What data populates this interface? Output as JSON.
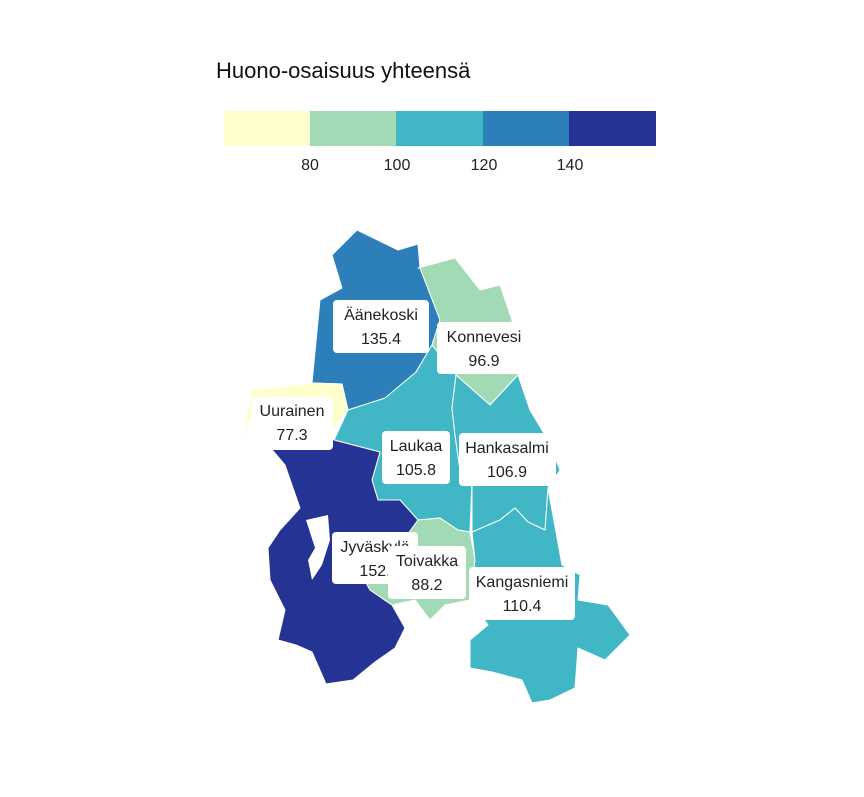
{
  "map": {
    "legend": {
      "title": "Huono-osaisuus yhteensä",
      "colors": [
        "#ffffcc",
        "#a1dab4",
        "#41b6c4",
        "#2c7fb8",
        "#253494"
      ],
      "ticks": [
        "80",
        "100",
        "120",
        "140"
      ]
    },
    "regions": [
      {
        "name": "Äänekoski",
        "value": "135.4",
        "color": "#2c7fb8"
      },
      {
        "name": "Konnevesi",
        "value": "96.9",
        "color": "#a1dab4"
      },
      {
        "name": "Uurainen",
        "value": "77.3",
        "color": "#ffffcc"
      },
      {
        "name": "Laukaa",
        "value": "105.8",
        "color": "#41b6c4"
      },
      {
        "name": "Hankasalmi",
        "value": "106.9",
        "color": "#41b6c4"
      },
      {
        "name": "Jyväskylä",
        "value": "152.",
        "color": "#253494"
      },
      {
        "name": "Toivakka",
        "value": "88.2",
        "color": "#a1dab4"
      },
      {
        "name": "Kangasniemi",
        "value": "110.4",
        "color": "#41b6c4"
      }
    ]
  }
}
